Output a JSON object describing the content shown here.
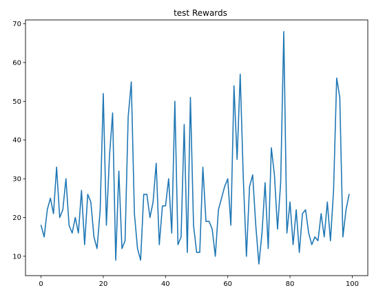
{
  "chart_data": {
    "type": "line",
    "title": "test Rewards",
    "xlabel": "",
    "ylabel": "",
    "xlim": [
      -5,
      105
    ],
    "ylim": [
      5,
      71
    ],
    "xticks": [
      0,
      20,
      40,
      60,
      80,
      100
    ],
    "yticks": [
      10,
      20,
      30,
      40,
      50,
      60,
      70
    ],
    "grid": false,
    "line_color": "#1f77b4",
    "series": [
      {
        "values": [
          18,
          15,
          22,
          25,
          21,
          33,
          20,
          22,
          30,
          18,
          16,
          20,
          16,
          27,
          13,
          26,
          24,
          15,
          12,
          22,
          52,
          18,
          36,
          47,
          9,
          32,
          12,
          14,
          46,
          55,
          21,
          12,
          9,
          26,
          26,
          20,
          24,
          34,
          13,
          23,
          23,
          30,
          16,
          50,
          13,
          15,
          44,
          11,
          51,
          18,
          11,
          11,
          33,
          19,
          19,
          17,
          10,
          22,
          25,
          28,
          30,
          18,
          54,
          35,
          57,
          30,
          10,
          28,
          31,
          18,
          8,
          16,
          29,
          12,
          38,
          31,
          17,
          29,
          68,
          16,
          24,
          13,
          22,
          11,
          21,
          22,
          16,
          13,
          15,
          14,
          21,
          15,
          24,
          14,
          27,
          56,
          51,
          15,
          22,
          26
        ]
      }
    ]
  }
}
